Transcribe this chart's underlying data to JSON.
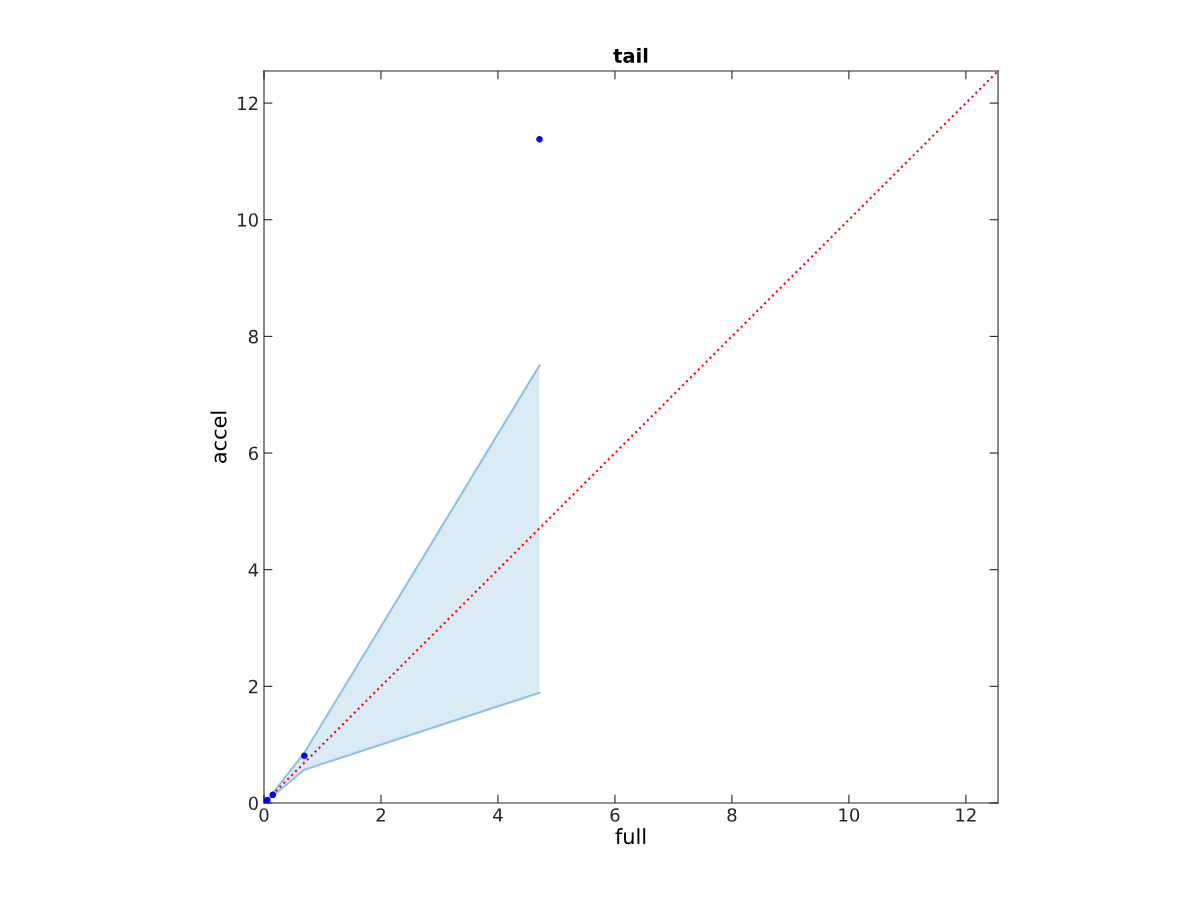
{
  "chart_data": {
    "type": "scatter",
    "title": "tail",
    "xlabel": "full",
    "ylabel": "accel",
    "xlim": [
      0,
      12.55
    ],
    "ylim": [
      0,
      12.55
    ],
    "xticks": [
      0,
      2,
      4,
      6,
      8,
      10,
      12
    ],
    "yticks": [
      0,
      2,
      4,
      6,
      8,
      10,
      12
    ],
    "grid": false,
    "marker": "circle",
    "series": [
      {
        "type": "line",
        "color": "#8fc1e3",
        "line_style": "solid",
        "marker": "none",
        "x": [
          0,
          0.056,
          0.15,
          0.69,
          4.71
        ],
        "values": [
          0,
          0.06,
          0.17,
          0.86,
          7.5
        ]
      },
      {
        "type": "line",
        "color": "#8fc1e3",
        "line_style": "solid",
        "marker": "none",
        "x": [
          0,
          0.056,
          0.15,
          0.69,
          4.71
        ],
        "values": [
          0,
          0.05,
          0.12,
          0.57,
          1.89
        ]
      },
      {
        "type": "line",
        "color": "#ff0000",
        "line_style": "dotted",
        "marker": "none",
        "x": [
          0,
          12.55
        ],
        "values": [
          0,
          12.55
        ]
      },
      {
        "color": "#0000ff",
        "x": [
          0,
          0.056,
          0.15,
          0.69,
          4.71
        ],
        "values": [
          0,
          0.05,
          0.14,
          0.81,
          11.38
        ],
        "lower": [
          0,
          0.05,
          0.12,
          0.57,
          1.89
        ],
        "upper": [
          0,
          0.06,
          0.17,
          0.86,
          7.5
        ]
      }
    ]
  }
}
